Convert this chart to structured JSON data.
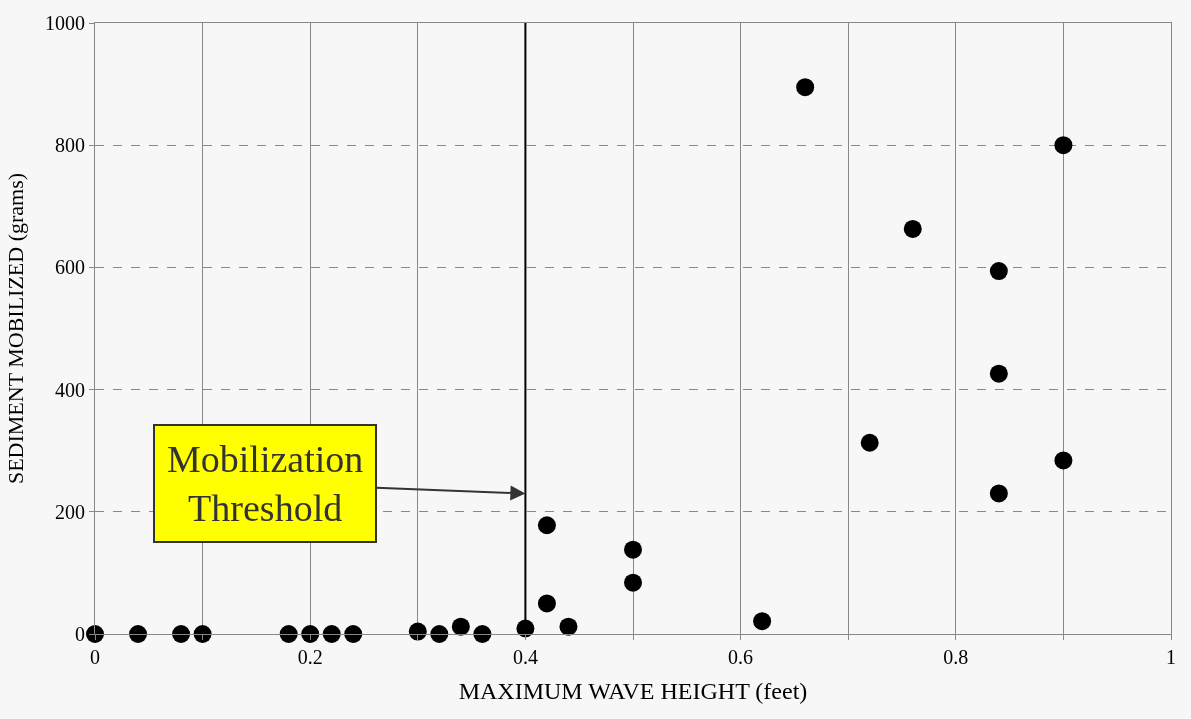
{
  "chart_data": {
    "type": "scatter",
    "xlabel": "MAXIMUM WAVE HEIGHT (feet)",
    "ylabel": "SEDIMENT MOBILIZED (grams)",
    "x": [
      0,
      0.04,
      0.08,
      0.1,
      0.18,
      0.2,
      0.22,
      0.24,
      0.3,
      0.32,
      0.34,
      0.36,
      0.4,
      0.42,
      0.42,
      0.44,
      0.5,
      0.5,
      0.62,
      0.66,
      0.72,
      0.76,
      0.84,
      0.84,
      0.84,
      0.9,
      0.9
    ],
    "series": [
      {
        "color": "#000000",
        "values": [
          0,
          0,
          0,
          0,
          0,
          0,
          0,
          0,
          4,
          0,
          12,
          0,
          9,
          178,
          50,
          12,
          138,
          84,
          21,
          895,
          313,
          663,
          594,
          426,
          230,
          800,
          284
        ]
      }
    ],
    "xlim": [
      0,
      1
    ],
    "ylim": [
      0,
      1000
    ],
    "xticks": [
      0,
      {
        "value": 0.1,
        "label": null
      },
      0.2,
      {
        "value": 0.3,
        "label": null
      },
      0.4,
      {
        "value": 0.5,
        "label": null
      },
      0.6,
      {
        "value": 0.7,
        "label": null
      },
      0.8,
      {
        "value": 0.9,
        "label": null
      },
      1
    ],
    "yticks": [
      0,
      200,
      400,
      600,
      800,
      1000
    ],
    "grid": true,
    "marker": "circle",
    "ref_lines": [
      {
        "axis": "x",
        "value": 0.4,
        "color": "#000000"
      }
    ],
    "annotations": [
      {
        "text": "Mobilization\nThreshold",
        "x": 0.4,
        "y": 230
      }
    ]
  }
}
